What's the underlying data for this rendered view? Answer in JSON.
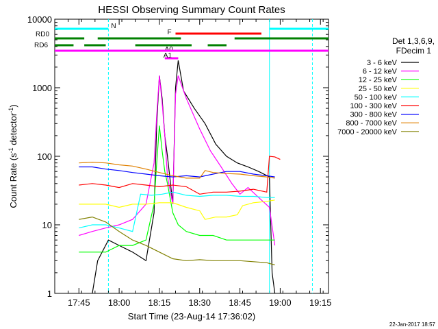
{
  "chart_data": {
    "type": "line",
    "title": "HESSI Observing Summary Count Rates",
    "xlabel": "Start Time (23-Aug-14 17:36:02)",
    "ylabel_main": "Count Rate (s",
    "ylabel_sup1": "-1",
    "ylabel_mid": " detector",
    "ylabel_sup2": "-1",
    "ylabel_end": ")",
    "yscale": "log",
    "ylim": [
      1,
      10000
    ],
    "xlim": [
      "17:36",
      "19:18"
    ],
    "x_ticks": [
      "17:45",
      "18:00",
      "18:15",
      "18:30",
      "18:45",
      "19:00",
      "19:15"
    ],
    "y_ticks": [
      "1",
      "10",
      "100",
      "1000",
      "10000"
    ],
    "legend_title_1": "Det 1,3,6,9,",
    "legend_title_2": "FDecim 1",
    "legend_position": "right",
    "footer": "22-Jan-2017 18:57",
    "series": [
      {
        "name": "3 - 6 keV",
        "color": "#000000",
        "points": [
          [
            "17:50",
            1
          ],
          [
            "17:52",
            3
          ],
          [
            "17:56",
            6
          ],
          [
            "18:00",
            5
          ],
          [
            "18:05",
            4
          ],
          [
            "18:10",
            3
          ],
          [
            "18:13",
            15
          ],
          [
            "18:14",
            300
          ],
          [
            "18:15",
            1500
          ],
          [
            "18:16",
            700
          ],
          [
            "18:17",
            200
          ],
          [
            "18:18",
            100
          ],
          [
            "18:20",
            20
          ],
          [
            "18:21",
            1000
          ],
          [
            "18:22",
            2500
          ],
          [
            "18:24",
            900
          ],
          [
            "18:28",
            500
          ],
          [
            "18:32",
            300
          ],
          [
            "18:36",
            150
          ],
          [
            "18:40",
            100
          ],
          [
            "18:44",
            80
          ],
          [
            "18:48",
            70
          ],
          [
            "18:52",
            60
          ],
          [
            "18:56",
            50
          ],
          [
            "18:57",
            2
          ],
          [
            "18:58",
            1
          ]
        ]
      },
      {
        "name": "6 - 12 keV",
        "color": "#ff00ff",
        "points": [
          [
            "17:45",
            7
          ],
          [
            "17:50",
            8
          ],
          [
            "17:55",
            9
          ],
          [
            "18:00",
            10
          ],
          [
            "18:05",
            12
          ],
          [
            "18:10",
            20
          ],
          [
            "18:13",
            80
          ],
          [
            "18:14",
            400
          ],
          [
            "18:15",
            1500
          ],
          [
            "18:16",
            600
          ],
          [
            "18:17",
            200
          ],
          [
            "18:18",
            50
          ],
          [
            "18:20",
            20
          ],
          [
            "18:21",
            800
          ],
          [
            "18:22",
            1500
          ],
          [
            "18:25",
            700
          ],
          [
            "18:30",
            250
          ],
          [
            "18:34",
            120
          ],
          [
            "18:38",
            70
          ],
          [
            "18:42",
            40
          ],
          [
            "18:45",
            28
          ],
          [
            "18:48",
            35
          ],
          [
            "18:52",
            25
          ],
          [
            "18:56",
            18
          ],
          [
            "18:58",
            5
          ]
        ]
      },
      {
        "name": "12 - 25 keV",
        "color": "#00ff00",
        "points": [
          [
            "17:45",
            4
          ],
          [
            "17:50",
            4
          ],
          [
            "17:55",
            4
          ],
          [
            "18:00",
            5
          ],
          [
            "18:05",
            5
          ],
          [
            "18:10",
            6
          ],
          [
            "18:13",
            20
          ],
          [
            "18:14",
            80
          ],
          [
            "18:15",
            280
          ],
          [
            "18:16",
            120
          ],
          [
            "18:17",
            60
          ],
          [
            "18:18",
            40
          ],
          [
            "18:20",
            15
          ],
          [
            "18:22",
            10
          ],
          [
            "18:25",
            8
          ],
          [
            "18:30",
            7
          ],
          [
            "18:35",
            7
          ],
          [
            "18:40",
            6
          ],
          [
            "18:45",
            6
          ],
          [
            "18:50",
            6
          ],
          [
            "18:55",
            6
          ],
          [
            "18:58",
            6
          ]
        ]
      },
      {
        "name": "25 - 50 keV",
        "color": "#ffff00",
        "points": [
          [
            "17:45",
            20
          ],
          [
            "17:50",
            20
          ],
          [
            "17:55",
            20
          ],
          [
            "18:00",
            18
          ],
          [
            "18:05",
            20
          ],
          [
            "18:10",
            20
          ],
          [
            "18:15",
            21
          ],
          [
            "18:20",
            21
          ],
          [
            "18:25",
            18
          ],
          [
            "18:30",
            16
          ],
          [
            "18:32",
            12
          ],
          [
            "18:36",
            13
          ],
          [
            "18:40",
            13
          ],
          [
            "18:44",
            14
          ],
          [
            "18:46",
            19
          ],
          [
            "18:50",
            21
          ],
          [
            "18:55",
            22
          ],
          [
            "18:58",
            23
          ]
        ]
      },
      {
        "name": "50 - 100 keV",
        "color": "#00ffff",
        "points": [
          [
            "17:45",
            9
          ],
          [
            "17:50",
            10
          ],
          [
            "17:55",
            10
          ],
          [
            "18:00",
            9
          ],
          [
            "18:05",
            8
          ],
          [
            "18:08",
            28
          ],
          [
            "18:12",
            27
          ],
          [
            "18:16",
            28
          ],
          [
            "18:20",
            30
          ],
          [
            "18:25",
            27
          ],
          [
            "18:30",
            26
          ],
          [
            "18:35",
            27
          ],
          [
            "18:40",
            27
          ],
          [
            "18:45",
            26
          ],
          [
            "18:50",
            26
          ],
          [
            "18:55",
            25
          ],
          [
            "18:58",
            25
          ]
        ]
      },
      {
        "name": "100 - 300 keV",
        "color": "#ff0000",
        "points": [
          [
            "17:45",
            38
          ],
          [
            "17:50",
            40
          ],
          [
            "17:55",
            38
          ],
          [
            "18:00",
            35
          ],
          [
            "18:05",
            40
          ],
          [
            "18:10",
            38
          ],
          [
            "18:15",
            36
          ],
          [
            "18:20",
            38
          ],
          [
            "18:25",
            36
          ],
          [
            "18:30",
            28
          ],
          [
            "18:35",
            30
          ],
          [
            "18:40",
            30
          ],
          [
            "18:45",
            31
          ],
          [
            "18:50",
            33
          ],
          [
            "18:55",
            30
          ],
          [
            "18:56",
            100
          ],
          [
            "18:58",
            98
          ],
          [
            "19:00",
            90
          ]
        ]
      },
      {
        "name": "300 - 800 keV",
        "color": "#0000ff",
        "points": [
          [
            "17:45",
            70
          ],
          [
            "17:50",
            70
          ],
          [
            "17:55",
            65
          ],
          [
            "18:00",
            62
          ],
          [
            "18:05",
            58
          ],
          [
            "18:10",
            55
          ],
          [
            "18:15",
            52
          ],
          [
            "18:20",
            50
          ],
          [
            "18:25",
            52
          ],
          [
            "18:30",
            50
          ],
          [
            "18:35",
            55
          ],
          [
            "18:40",
            60
          ],
          [
            "18:45",
            60
          ],
          [
            "18:50",
            55
          ],
          [
            "18:55",
            52
          ],
          [
            "18:58",
            50
          ]
        ]
      },
      {
        "name": "800 - 7000 keV",
        "color": "#e08000",
        "points": [
          [
            "17:45",
            80
          ],
          [
            "17:50",
            82
          ],
          [
            "17:55",
            80
          ],
          [
            "18:00",
            75
          ],
          [
            "18:05",
            72
          ],
          [
            "18:10",
            65
          ],
          [
            "18:15",
            58
          ],
          [
            "18:20",
            52
          ],
          [
            "18:25",
            48
          ],
          [
            "18:30",
            48
          ],
          [
            "18:32",
            62
          ],
          [
            "18:35",
            58
          ],
          [
            "18:40",
            56
          ],
          [
            "18:45",
            55
          ],
          [
            "18:50",
            52
          ],
          [
            "18:55",
            50
          ],
          [
            "18:58",
            48
          ]
        ]
      },
      {
        "name": "7000 - 20000 keV",
        "color": "#808000",
        "points": [
          [
            "17:45",
            12
          ],
          [
            "17:50",
            13
          ],
          [
            "17:55",
            11
          ],
          [
            "18:00",
            8
          ],
          [
            "18:05",
            6
          ],
          [
            "18:10",
            5
          ],
          [
            "18:15",
            4
          ],
          [
            "18:20",
            3.2
          ],
          [
            "18:25",
            3
          ],
          [
            "18:30",
            3.1
          ],
          [
            "18:35",
            3
          ],
          [
            "18:40",
            3
          ],
          [
            "18:45",
            3
          ],
          [
            "18:50",
            2.9
          ],
          [
            "18:55",
            2.8
          ],
          [
            "18:58",
            2.6
          ]
        ]
      }
    ],
    "flag_bars": [
      {
        "label": "N",
        "color": "#00ffff",
        "segments": [
          [
            "17:36",
            "17:56"
          ],
          [
            "18:56",
            "19:18"
          ]
        ]
      },
      {
        "label": "RD0",
        "color": "#008000",
        "segments": [
          [
            "17:36",
            "17:47"
          ],
          [
            "17:52",
            "18:23"
          ],
          [
            "18:43",
            "19:18"
          ]
        ]
      },
      {
        "label": "RD6",
        "color": "#008000",
        "segments": [
          [
            "17:36",
            "17:43"
          ],
          [
            "17:47",
            "17:55"
          ],
          [
            "18:06",
            "18:27"
          ],
          [
            "18:33",
            "18:40"
          ]
        ]
      },
      {
        "label": "F",
        "color": "#ff0000",
        "segments": [
          [
            "18:21",
            "18:53"
          ]
        ]
      },
      {
        "label": "A1",
        "color": "#ff00ff",
        "segments": [
          [
            "18:17",
            "18:19"
          ]
        ]
      },
      {
        "label": "A0",
        "color": "#ff00ff",
        "segments": [
          [
            "18:19",
            "18:22"
          ]
        ]
      },
      {
        "label": "",
        "color": "#ff00ff",
        "segments": [
          [
            "17:36",
            "19:18"
          ]
        ]
      }
    ],
    "vlines": [
      {
        "time": "17:56",
        "color": "#00ffff",
        "style": "dashed"
      },
      {
        "time": "18:56",
        "color": "#00ffff",
        "style": "solid"
      },
      {
        "time": "19:12",
        "color": "#00ffff",
        "style": "dashed"
      }
    ]
  }
}
